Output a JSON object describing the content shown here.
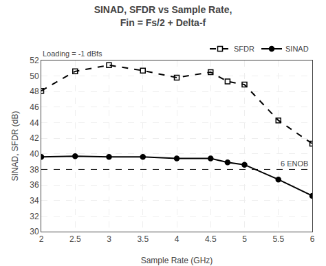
{
  "chart_data": {
    "type": "line",
    "title": "SINAD, SFDR vs Sample Rate,",
    "subtitle": "Fin = Fs/2 + Delta-f",
    "x_label": "Sample Rate (GHz)",
    "y_label": "SINAD, SFDR (dB)",
    "annotations": [
      "Loading = -1 dBfs"
    ],
    "x": [
      2,
      2.5,
      3,
      3.5,
      4,
      4.5,
      4.75,
      5,
      5.5,
      6
    ],
    "series": [
      {
        "name": "SFDR",
        "color": "#000000",
        "marker": "square-open",
        "line_style": "dashed",
        "values": [
          48.1,
          50.6,
          51.4,
          50.7,
          49.8,
          50.5,
          49.3,
          48.9,
          44.3,
          41.3
        ]
      },
      {
        "name": "SINAD",
        "color": "#000000",
        "marker": "circle",
        "line_style": "solid",
        "values": [
          39.6,
          39.7,
          39.6,
          39.6,
          39.4,
          39.4,
          38.9,
          38.6,
          36.7,
          34.6
        ]
      }
    ],
    "reference_lines": [
      {
        "y": 38.0,
        "label": "6 ENOB",
        "color": "#000000",
        "line_style": "dashed"
      }
    ],
    "xlim": [
      2,
      6
    ],
    "xticks": [
      2,
      2.5,
      3,
      3.5,
      4,
      4.5,
      5,
      5.5,
      6
    ],
    "ylim": [
      30,
      52
    ],
    "yticks": [
      30,
      32,
      34,
      36,
      38,
      40,
      42,
      44,
      46,
      48,
      50,
      52
    ],
    "grid": true,
    "legend": "upper right"
  }
}
